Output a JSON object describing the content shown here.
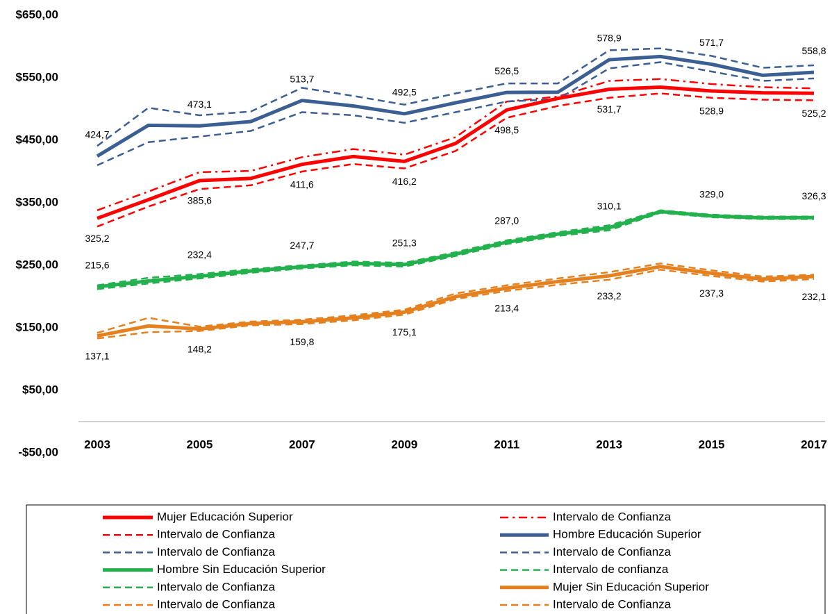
{
  "chart_data": {
    "type": "line",
    "categories": [
      "2003",
      null,
      "2005",
      null,
      "2007",
      null,
      "2009",
      null,
      "2011",
      null,
      "2013",
      null,
      "2015",
      null,
      "2017"
    ],
    "ylim": [
      -50,
      650
    ],
    "yticks": [
      {
        "value": -50,
        "label": "-$50,00"
      },
      {
        "value": 50,
        "label": "$50,00"
      },
      {
        "value": 150,
        "label": "$150,00"
      },
      {
        "value": 250,
        "label": "$250,00"
      },
      {
        "value": 350,
        "label": "$350,00"
      },
      {
        "value": 450,
        "label": "$450,00"
      },
      {
        "value": 550,
        "label": "$550,00"
      },
      {
        "value": 650,
        "label": "$650,00"
      }
    ],
    "grid": false,
    "legend": "bottom",
    "series": [
      {
        "name": "Mujer Educación Superior",
        "color": "#ff0000",
        "style": "solid",
        "label_position": "below",
        "values": [
          325.2,
          355,
          385.6,
          389,
          411.6,
          424,
          416.2,
          445,
          498.5,
          517,
          531.7,
          535,
          528.9,
          526,
          525.2
        ],
        "value_labels": [
          "325,2",
          null,
          "385,6",
          null,
          "411,6",
          null,
          "416,2",
          null,
          "498,5",
          null,
          "531,7",
          null,
          "528,9",
          null,
          "525,2"
        ]
      },
      {
        "name": "Intervalo de Confianza",
        "color": "#ff0000",
        "style": "dashdot",
        "values": [
          338,
          368,
          399,
          401,
          423,
          436,
          427,
          455,
          512,
          520,
          545,
          548,
          540,
          535,
          533
        ]
      },
      {
        "name": "Intervalo de Confianza",
        "color": "#ff0000",
        "style": "dash",
        "values": [
          312,
          344,
          372,
          378,
          400,
          412,
          405,
          433,
          486,
          505,
          518,
          525,
          518,
          515,
          514
        ]
      },
      {
        "name": "Hombre Educación Superior",
        "color": "#3b5f93",
        "style": "solid",
        "label_position": "above",
        "values": [
          424.7,
          474,
          473.1,
          480,
          513.7,
          505,
          492.5,
          510,
          526.5,
          527,
          578.9,
          584,
          571.7,
          554,
          558.8
        ],
        "value_labels": [
          "424,7",
          null,
          "473,1",
          null,
          "513,7",
          null,
          "492,5",
          null,
          "526,5",
          null,
          "578,9",
          null,
          "571,7",
          null,
          "558,8"
        ]
      },
      {
        "name": "Intervalo de Confianza",
        "color": "#3b5f93",
        "style": "dash",
        "values": [
          441,
          502,
          490,
          496,
          534,
          521,
          507,
          525,
          541,
          541,
          594,
          597,
          585,
          566,
          570
        ]
      },
      {
        "name": "Intervalo de Confianza",
        "color": "#3b5f93",
        "style": "dash",
        "values": [
          410,
          447,
          456,
          465,
          495,
          490,
          478,
          495,
          512,
          516,
          565,
          575,
          560,
          545,
          549
        ]
      },
      {
        "name": "Hombre Sin Educación Superior",
        "color": "#22b14c",
        "style": "solid",
        "label_position": "above",
        "values": [
          215.6,
          225,
          232.4,
          241,
          247.7,
          253,
          251.3,
          268,
          287.0,
          300,
          310.1,
          336,
          329.0,
          326,
          326.3
        ],
        "value_labels": [
          "215,6",
          null,
          "232,4",
          null,
          "247,7",
          null,
          "251,3",
          null,
          "287,0",
          null,
          "310,1",
          null,
          "329,0",
          null,
          "326,3"
        ]
      },
      {
        "name": "Intervalo de confianza",
        "color": "#22b14c",
        "style": "dash",
        "values": [
          218,
          230,
          236,
          244,
          250,
          256,
          254,
          271,
          290,
          303,
          314,
          338,
          331,
          328,
          328
        ]
      },
      {
        "name": "Intervalo de Confianza",
        "color": "#22b14c",
        "style": "dash",
        "values": [
          212,
          221,
          229,
          238,
          245,
          250,
          248,
          265,
          284,
          297,
          306,
          334,
          327,
          324,
          324
        ]
      },
      {
        "name": "Mujer Sin Educación Superior",
        "color": "#e5801e",
        "style": "solid",
        "label_position": "below",
        "values": [
          137.1,
          153,
          148.2,
          157,
          159.8,
          166,
          175.1,
          200,
          213.4,
          224,
          233.2,
          248,
          237.3,
          228,
          232.1
        ],
        "value_labels": [
          "137,1",
          null,
          "148,2",
          null,
          "159,8",
          null,
          "175,1",
          null,
          "213,4",
          null,
          "233,2",
          null,
          "237,3",
          null,
          "232,1"
        ]
      },
      {
        "name": "Intervalo de Confianza",
        "color": "#e5801e",
        "style": "dash",
        "values": [
          142,
          166,
          152,
          160,
          163,
          170,
          179,
          205,
          218,
          229,
          239,
          253,
          242,
          232,
          235
        ]
      },
      {
        "name": "Intervalo de Confianza",
        "color": "#e5801e",
        "style": "dash",
        "values": [
          133,
          143,
          145,
          154,
          156,
          162,
          171,
          196,
          209,
          219,
          227,
          243,
          233,
          224,
          228
        ]
      }
    ]
  }
}
